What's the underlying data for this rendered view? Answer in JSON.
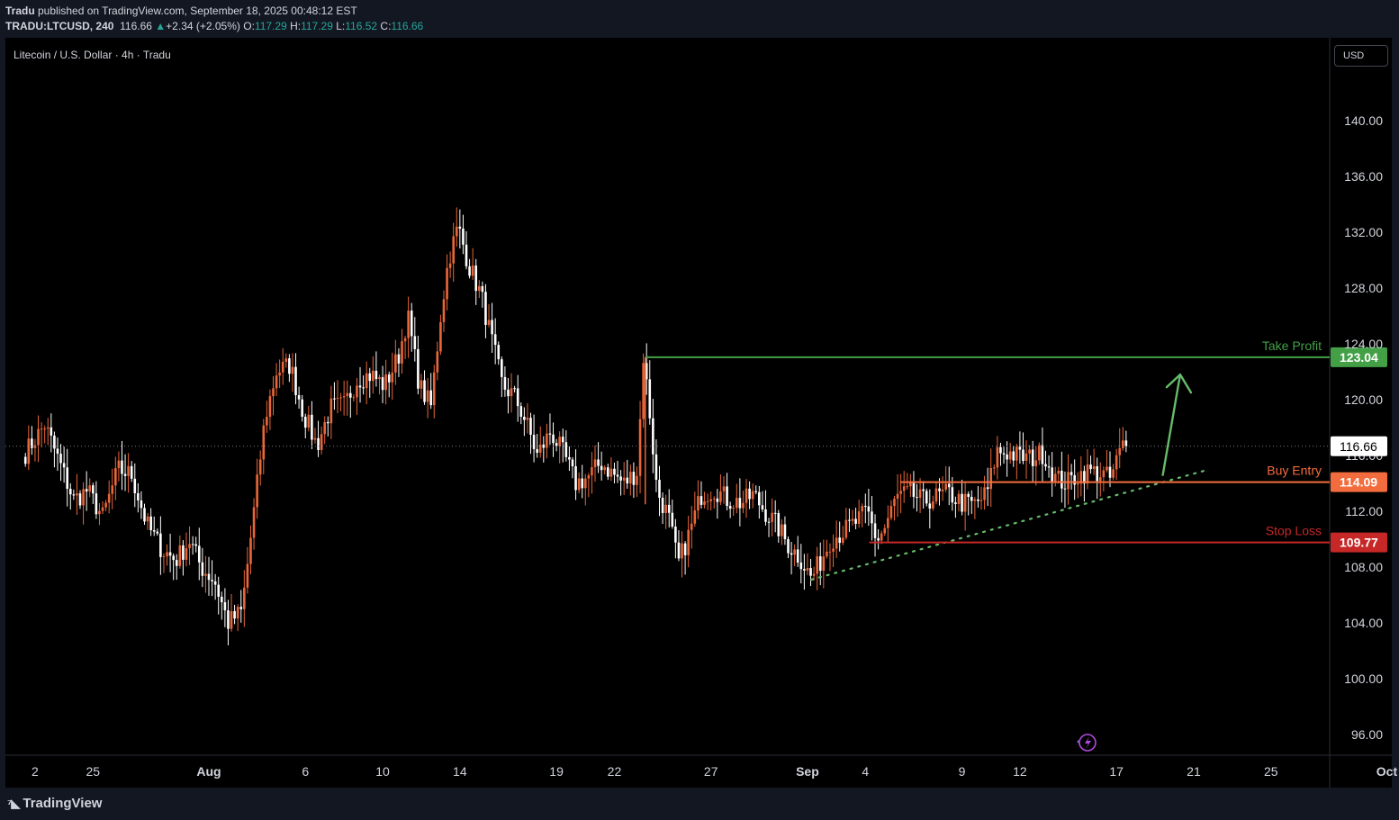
{
  "header": {
    "author": "Tradu",
    "published_text": " published on TradingView.com, September 18, 2025 00:48:12 EST",
    "symbol": "TRADU:LTCUSD, 240",
    "last": "116.66",
    "change_arrow": "▲",
    "change": "+2.34 (+2.05%)",
    "o_label": "O:",
    "o": "117.29",
    "h_label": "H:",
    "h": "117.29",
    "l_label": "L:",
    "l": "116.52",
    "c_label": "C:",
    "c": "116.66"
  },
  "symbol_title": "Litecoin / U.S. Dollar · 4h · Tradu",
  "currency": "USD",
  "logo": "TradingView",
  "colors": {
    "up": "#e8673a",
    "down": "#ffffff",
    "take_profit": "#43a047",
    "buy_entry": "#f36c3d",
    "stop_loss": "#c62828",
    "trendline": "#66bb6a",
    "arrow": "#66bb6a"
  },
  "chart_data": {
    "type": "candlestick",
    "y_ticks": [
      "140.00",
      "136.00",
      "132.00",
      "128.00",
      "124.00",
      "120.00",
      "116.00",
      "112.00",
      "108.00",
      "104.00",
      "100.00",
      "96.00"
    ],
    "x_ticks": [
      {
        "label": "2",
        "day": -9
      },
      {
        "label": "25",
        "day": -6
      },
      {
        "label": "Aug",
        "day": 0
      },
      {
        "label": "6",
        "day": 5
      },
      {
        "label": "10",
        "day": 9
      },
      {
        "label": "14",
        "day": 13
      },
      {
        "label": "19",
        "day": 18
      },
      {
        "label": "22",
        "day": 21
      },
      {
        "label": "27",
        "day": 26
      },
      {
        "label": "Sep",
        "day": 31
      },
      {
        "label": "4",
        "day": 34
      },
      {
        "label": "9",
        "day": 39
      },
      {
        "label": "12",
        "day": 42
      },
      {
        "label": "17",
        "day": 47
      },
      {
        "label": "21",
        "day": 51
      },
      {
        "label": "25",
        "day": 55
      },
      {
        "label": "Oct",
        "day": 61
      }
    ],
    "last_price": {
      "value": 116.66,
      "label": "116.66"
    },
    "levels": [
      {
        "name": "Take Profit",
        "value": 123.04,
        "label": "123.04",
        "start_day": 22.6
      },
      {
        "name": "Buy Entry",
        "value": 114.09,
        "label": "114.09",
        "start_day": 35.8
      },
      {
        "name": "Stop Loss",
        "value": 109.77,
        "label": "109.77",
        "start_day": 34.2
      }
    ],
    "trendline": {
      "from": {
        "day": 31.2,
        "value": 107.1
      },
      "to": {
        "day": 51.8,
        "value": 115.0
      }
    },
    "arrow": {
      "from": {
        "day": 49.4,
        "value": 114.6
      },
      "to": {
        "day": 50.3,
        "value": 121.8
      }
    },
    "anchors": [
      [
        -9.5,
        116.2
      ],
      [
        -8.5,
        118.2
      ],
      [
        -7.6,
        115.0
      ],
      [
        -7.0,
        112.8
      ],
      [
        -6.3,
        113.5
      ],
      [
        -5.5,
        111.6
      ],
      [
        -4.7,
        115.0
      ],
      [
        -4.0,
        114.6
      ],
      [
        -3.2,
        111.0
      ],
      [
        -2.4,
        109.2
      ],
      [
        -1.7,
        108.5
      ],
      [
        -1.0,
        109.9
      ],
      [
        -0.4,
        108.0
      ],
      [
        0.3,
        107.0
      ],
      [
        1.0,
        104.0
      ],
      [
        1.7,
        104.8
      ],
      [
        2.3,
        111.6
      ],
      [
        2.9,
        118.6
      ],
      [
        3.5,
        122.0
      ],
      [
        4.2,
        122.5
      ],
      [
        4.9,
        119.0
      ],
      [
        5.6,
        116.7
      ],
      [
        6.3,
        119.4
      ],
      [
        7.0,
        119.6
      ],
      [
        7.7,
        121.5
      ],
      [
        8.4,
        121.8
      ],
      [
        9.1,
        121.0
      ],
      [
        9.8,
        123.0
      ],
      [
        10.3,
        126.0
      ],
      [
        10.9,
        121.0
      ],
      [
        11.5,
        119.5
      ],
      [
        12.0,
        126.0
      ],
      [
        12.4,
        130.0
      ],
      [
        12.9,
        132.4
      ],
      [
        13.5,
        129.5
      ],
      [
        14.1,
        127.5
      ],
      [
        14.6,
        124.5
      ],
      [
        15.2,
        121.0
      ],
      [
        15.8,
        120.3
      ],
      [
        16.4,
        118.5
      ],
      [
        17.0,
        116.0
      ],
      [
        17.7,
        117.7
      ],
      [
        18.4,
        116.0
      ],
      [
        19.0,
        114.0
      ],
      [
        19.7,
        114.5
      ],
      [
        20.3,
        115.5
      ],
      [
        20.9,
        114.7
      ],
      [
        21.5,
        114.0
      ],
      [
        22.2,
        114.9
      ],
      [
        22.5,
        123.1
      ],
      [
        22.8,
        119.5
      ],
      [
        23.2,
        113.5
      ],
      [
        23.8,
        111.6
      ],
      [
        24.3,
        108.2
      ],
      [
        24.9,
        110.5
      ],
      [
        25.5,
        113.2
      ],
      [
        26.2,
        113.6
      ],
      [
        26.9,
        112.8
      ],
      [
        27.6,
        112.6
      ],
      [
        28.2,
        113.2
      ],
      [
        28.8,
        112.0
      ],
      [
        29.4,
        111.0
      ],
      [
        30.0,
        109.6
      ],
      [
        30.6,
        108.7
      ],
      [
        31.2,
        107.2
      ],
      [
        31.7,
        108.5
      ],
      [
        32.2,
        110.0
      ],
      [
        32.8,
        110.5
      ],
      [
        33.5,
        111.2
      ],
      [
        34.1,
        112.0
      ],
      [
        34.6,
        109.9
      ],
      [
        35.0,
        110.8
      ],
      [
        35.6,
        113.0
      ],
      [
        36.3,
        113.3
      ],
      [
        37.0,
        112.7
      ],
      [
        37.6,
        113.0
      ],
      [
        38.3,
        113.3
      ],
      [
        39.0,
        112.6
      ],
      [
        39.7,
        112.5
      ],
      [
        40.3,
        113.3
      ],
      [
        40.8,
        116.3
      ],
      [
        41.4,
        116.2
      ],
      [
        42.0,
        115.9
      ],
      [
        42.6,
        115.8
      ],
      [
        43.2,
        116.2
      ],
      [
        43.8,
        114.4
      ],
      [
        44.4,
        114.0
      ],
      [
        45.0,
        114.6
      ],
      [
        45.6,
        114.9
      ],
      [
        46.2,
        114.7
      ],
      [
        46.7,
        114.3
      ],
      [
        47.1,
        116.0
      ],
      [
        47.4,
        116.9
      ],
      [
        47.6,
        116.7
      ]
    ]
  }
}
